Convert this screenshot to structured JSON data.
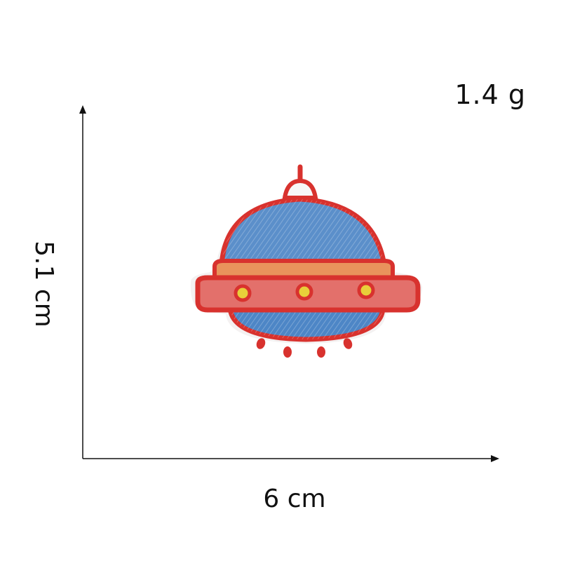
{
  "dimensions": {
    "width_label": "6 cm",
    "height_label": "5.1 cm",
    "weight_label": "1.4 g"
  },
  "product": {
    "icon": "ufo-embroidered-patch-icon",
    "colors": {
      "outline": "#d8322e",
      "dome": "#5b8fca",
      "band_top": "#e9935c",
      "band_main": "#e3706b",
      "lights": "#e8cf3a",
      "base": "#4d86c6",
      "edge": "#f4f1f1"
    }
  }
}
